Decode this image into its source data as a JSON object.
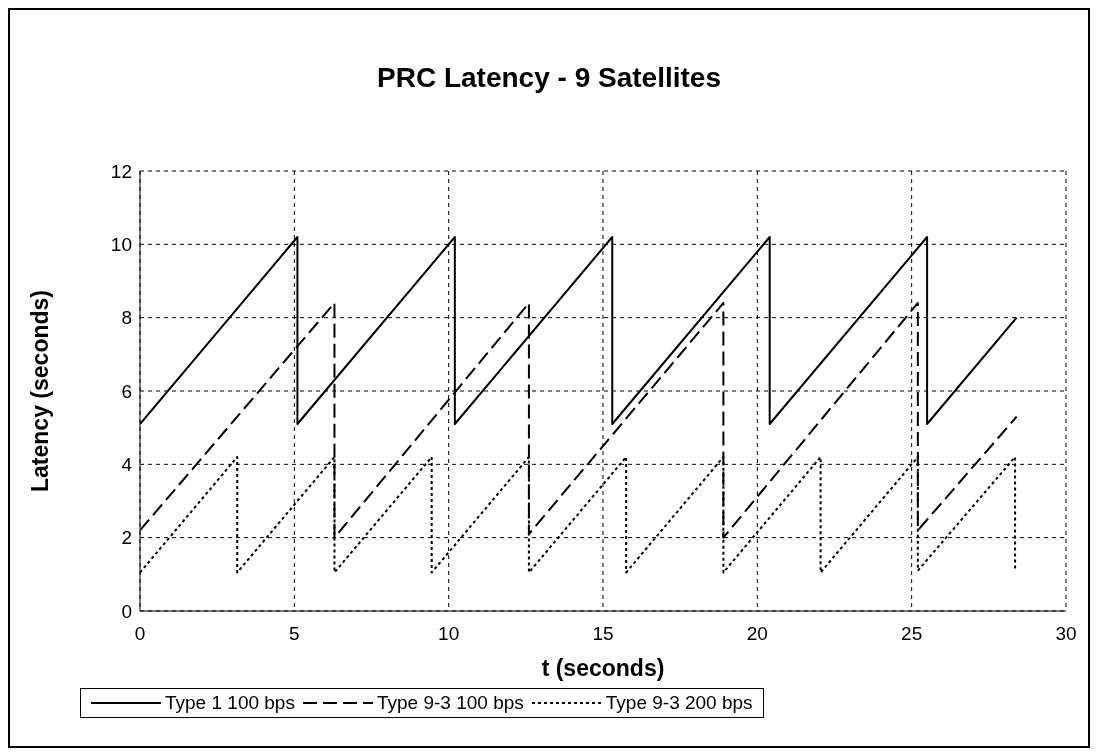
{
  "chart_data": {
    "type": "line",
    "title": "PRC Latency - 9 Satellites",
    "xlabel": "t (seconds)",
    "ylabel": "Latency (seconds)",
    "xlim": [
      0,
      30
    ],
    "xticks": [
      0,
      5,
      10,
      15,
      20,
      25,
      30
    ],
    "ylim": [
      0,
      12
    ],
    "yticks": [
      0,
      2,
      4,
      6,
      8,
      10,
      12
    ],
    "grid": true,
    "legend": "bottom",
    "marker": "none",
    "series": [
      {
        "name": "Type 1 100 bps",
        "color": "#000000",
        "line_style": "solid",
        "x": [
          0,
          5.1,
          5.1,
          10.2,
          10.2,
          15.3,
          15.3,
          20.4,
          20.4,
          25.5,
          25.5,
          28.4
        ],
        "values": [
          5.1,
          10.2,
          5.1,
          10.2,
          5.1,
          10.2,
          5.1,
          10.2,
          5.1,
          10.2,
          5.1,
          8.0
        ]
      },
      {
        "name": "Type 9-3 100 bps",
        "color": "#000000",
        "line_style": "dashed",
        "x": [
          0,
          6.3,
          6.3,
          12.6,
          12.6,
          18.9,
          18.9,
          25.2,
          25.2,
          28.4
        ],
        "values": [
          2.2,
          8.4,
          2.0,
          8.4,
          2.1,
          8.4,
          2.0,
          8.4,
          2.2,
          5.3
        ]
      },
      {
        "name": "Type 9-3 200 bps",
        "color": "#000000",
        "line_style": "dotted",
        "x": [
          0,
          3.15,
          3.15,
          6.3,
          6.3,
          9.45,
          9.45,
          12.6,
          12.6,
          15.75,
          15.75,
          18.9,
          18.9,
          22.05,
          22.05,
          25.2,
          25.2,
          28.35,
          28.35
        ],
        "values": [
          1.05,
          4.2,
          1.05,
          4.2,
          1.05,
          4.2,
          1.05,
          4.2,
          1.05,
          4.2,
          1.05,
          4.2,
          1.05,
          4.2,
          1.05,
          4.2,
          1.1,
          4.2,
          1.1
        ]
      }
    ]
  }
}
